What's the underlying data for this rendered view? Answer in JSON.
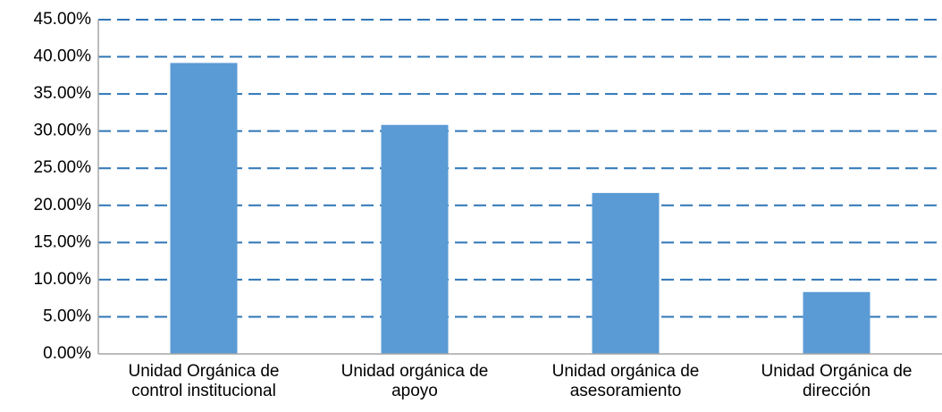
{
  "chart_data": {
    "type": "bar",
    "categories": [
      "Unidad Orgánica de control institucional",
      "Unidad orgánica de apoyo",
      "Unidad orgánica de asesoramiento",
      "Unidad Orgánica de dirección"
    ],
    "values": [
      39.17,
      30.83,
      21.67,
      8.33
    ],
    "color": "#5b9bd5",
    "ylim": [
      0,
      45
    ],
    "yticks": [
      {
        "value": 0,
        "label": "0.00%"
      },
      {
        "value": 5,
        "label": "5.00%"
      },
      {
        "value": 10,
        "label": "10.00%"
      },
      {
        "value": 15,
        "label": "15.00%"
      },
      {
        "value": 20,
        "label": "20.00%"
      },
      {
        "value": 25,
        "label": "25.00%"
      },
      {
        "value": 30,
        "label": "30.00%"
      },
      {
        "value": 35,
        "label": "35.00%"
      },
      {
        "value": 40,
        "label": "40.00%"
      },
      {
        "value": 45,
        "label": "45.00%"
      }
    ],
    "grid": true,
    "grid_color": "#2e75b6"
  }
}
